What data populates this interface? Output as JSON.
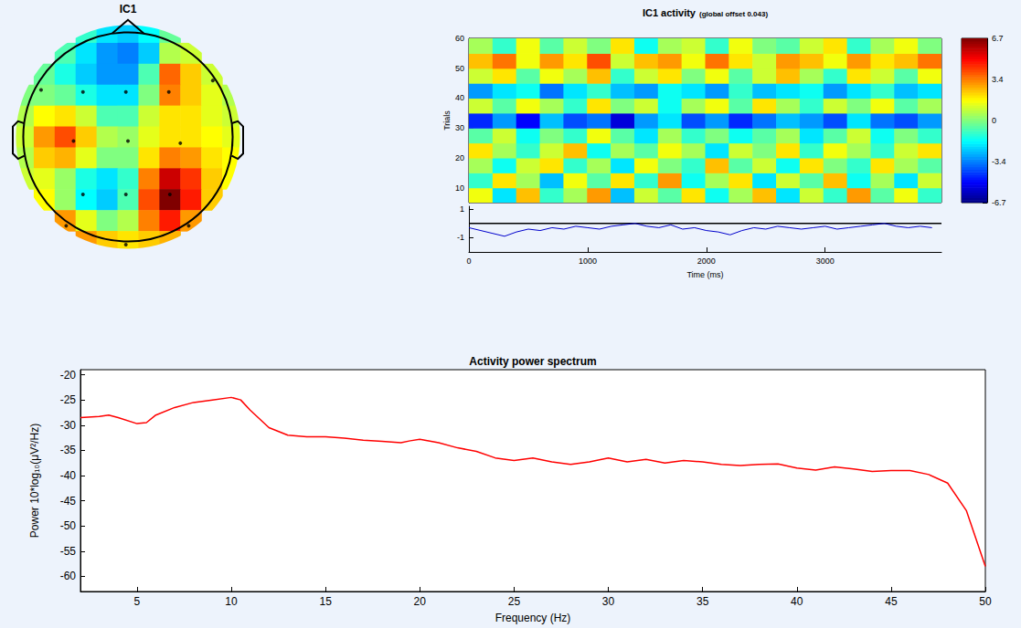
{
  "chart_data": [
    {
      "type": "topomap",
      "title": "IC1",
      "tick_labels": false,
      "xlim": [
        -1.1,
        1.1
      ],
      "ylim": [
        -1.1,
        1.1
      ],
      "clim": [
        -1,
        1
      ],
      "x": [
        -1.0,
        -0.8,
        -0.6,
        -0.4,
        -0.2,
        0.0,
        0.2,
        0.4,
        0.6,
        0.8,
        1.0
      ],
      "y": [
        1.0,
        0.8,
        0.6,
        0.4,
        0.2,
        0.0,
        -0.2,
        -0.4,
        -0.6,
        -0.8,
        -1.0
      ],
      "cells": [
        [
          null,
          null,
          null,
          -0.15,
          -0.3,
          -0.35,
          -0.25,
          -0.05,
          null,
          null,
          null
        ],
        [
          null,
          null,
          -0.1,
          -0.3,
          -0.45,
          -0.5,
          -0.35,
          0.1,
          0.15,
          null,
          null
        ],
        [
          null,
          -0.05,
          -0.2,
          -0.35,
          -0.45,
          -0.45,
          -0.1,
          0.55,
          0.35,
          0.15,
          null
        ],
        [
          0.0,
          0.0,
          -0.05,
          -0.2,
          -0.3,
          -0.3,
          0.0,
          0.5,
          0.35,
          0.2,
          0.1
        ],
        [
          0.1,
          0.25,
          0.3,
          0.15,
          -0.1,
          -0.1,
          0.15,
          0.3,
          0.3,
          0.2,
          0.15
        ],
        [
          0.15,
          0.45,
          0.6,
          0.35,
          0.1,
          0.05,
          0.2,
          0.3,
          0.3,
          0.25,
          0.2
        ],
        [
          0.1,
          0.35,
          0.4,
          0.2,
          0.0,
          0.0,
          0.3,
          0.5,
          0.45,
          0.3,
          0.25
        ],
        [
          0.15,
          0.2,
          0.05,
          -0.2,
          -0.3,
          -0.15,
          0.5,
          0.85,
          0.65,
          0.35,
          0.25
        ],
        [
          null,
          0.25,
          0.05,
          -0.25,
          -0.35,
          -0.1,
          0.6,
          1.0,
          0.7,
          0.35,
          null
        ],
        [
          null,
          null,
          0.45,
          0.2,
          0.0,
          0.1,
          0.5,
          0.7,
          0.45,
          null,
          null
        ],
        [
          null,
          null,
          null,
          0.45,
          0.35,
          0.3,
          0.35,
          0.4,
          null,
          null,
          null
        ]
      ],
      "electrodes": [
        [
          -0.43,
          0.43
        ],
        [
          -0.02,
          0.43
        ],
        [
          0.39,
          0.43
        ],
        [
          -0.52,
          -0.04
        ],
        [
          0.0,
          -0.04
        ],
        [
          0.5,
          -0.06
        ],
        [
          -0.43,
          -0.55
        ],
        [
          -0.02,
          -0.55
        ],
        [
          0.4,
          -0.55
        ],
        [
          -0.59,
          -0.85
        ],
        [
          -0.02,
          -1.03
        ],
        [
          0.58,
          -0.85
        ],
        [
          -0.83,
          0.45
        ],
        [
          0.81,
          0.54
        ]
      ]
    },
    {
      "type": "erpimage",
      "title": "IC1 activity",
      "subtitle": "(global offset 0.043)",
      "xlabel": "Time (ms)",
      "ylabel": "Trials",
      "xlim": [
        0,
        3980
      ],
      "ylim": [
        5,
        60
      ],
      "xticks": [
        0,
        1000,
        2000,
        3000
      ],
      "yticks": [
        10,
        20,
        30,
        40,
        50,
        60
      ],
      "clim": [
        -6.7,
        6.7
      ],
      "cticks": [
        6.7,
        {
          "value": 3.35,
          "label": "3.4"
        },
        0,
        {
          "value": -3.35,
          "label": "-3.4"
        },
        -6.7
      ],
      "cells": [
        [
          1.5,
          -2,
          2.5,
          -1,
          0.5,
          3,
          -2.5,
          1,
          -0.5,
          2,
          -1.5,
          0.5,
          2.5,
          -2,
          1,
          -1,
          3,
          -0.5,
          1.5,
          -1
        ],
        [
          -1,
          2,
          0.5,
          -2.5,
          1.5,
          -0.5,
          2,
          -1,
          3,
          -1.5,
          0.5,
          2,
          -2,
          1,
          -0.5,
          2.5,
          -1.5,
          0.5,
          -2,
          1
        ],
        [
          0.5,
          -1.5,
          1,
          2,
          -1,
          0.5,
          -2,
          1.5,
          0,
          -1,
          2.5,
          -0.5,
          1,
          -1.5,
          2,
          0,
          -1,
          2,
          0.5,
          -0.5
        ],
        [
          2,
          0.5,
          -1,
          1,
          2.5,
          -1.5,
          0.5,
          -0.5,
          1.5,
          0.5,
          -2,
          1,
          0,
          2,
          -1,
          1.5,
          0.5,
          -1,
          1,
          2
        ],
        [
          -0.5,
          1,
          -1.5,
          0,
          -1,
          1.5,
          -0.5,
          -2,
          0.5,
          -1,
          0,
          -1.5,
          -0.5,
          0.5,
          -2,
          -0.5,
          1,
          -1.5,
          0,
          -1
        ],
        [
          -4.5,
          -3,
          -5,
          -2.5,
          -4,
          -3.5,
          -5.5,
          -3,
          -2,
          -4,
          -3,
          -4.5,
          -3.5,
          -2.5,
          -3,
          -4,
          -2,
          -3.5,
          -4,
          -3
        ],
        [
          1,
          -0.5,
          1.5,
          0.5,
          -1,
          2,
          0,
          1,
          -1.5,
          0.5,
          1.5,
          -0.5,
          2,
          0.5,
          -1,
          1,
          0,
          1.5,
          -0.5,
          0.5
        ],
        [
          -3,
          -2,
          -1.5,
          -3.5,
          -2,
          -1,
          -2.5,
          -3,
          -1.5,
          -2,
          -3,
          -1,
          -2.5,
          -2,
          -1.5,
          -3,
          -2,
          -1,
          -2.5,
          -2
        ],
        [
          1,
          2,
          -0.5,
          1.5,
          0.5,
          2.5,
          -1,
          1,
          2,
          0,
          1.5,
          -0.5,
          1,
          2.5,
          0.5,
          -1,
          2,
          1,
          -0.5,
          1.5
        ],
        [
          2.5,
          3.5,
          1.5,
          3,
          2,
          4,
          1,
          2.5,
          3,
          1.5,
          3.5,
          2,
          1,
          3,
          2.5,
          1.5,
          3,
          2,
          2.5,
          3.5
        ],
        [
          0.5,
          -1,
          1.5,
          -0.5,
          1,
          0,
          2,
          -1.5,
          0.5,
          1,
          -1,
          1.5,
          0,
          -0.5,
          1,
          2,
          -1,
          0.5,
          1.5,
          0
        ]
      ],
      "erp": {
        "type": "line",
        "color": "#0000cc",
        "ylim": [
          -2,
          1.2
        ],
        "yticks": [
          -1,
          1
        ],
        "baseline": 0,
        "x": [
          0,
          100,
          200,
          300,
          400,
          500,
          600,
          700,
          800,
          900,
          1000,
          1100,
          1200,
          1300,
          1400,
          1500,
          1600,
          1700,
          1800,
          1900,
          2000,
          2100,
          2200,
          2300,
          2400,
          2500,
          2600,
          2700,
          2800,
          2900,
          3000,
          3100,
          3200,
          3300,
          3400,
          3500,
          3600,
          3700,
          3800,
          3900
        ],
        "values": [
          -0.3,
          -0.5,
          -0.7,
          -0.9,
          -0.6,
          -0.4,
          -0.5,
          -0.3,
          -0.4,
          -0.2,
          -0.3,
          -0.4,
          -0.2,
          -0.1,
          0.0,
          -0.2,
          -0.3,
          -0.1,
          -0.4,
          -0.3,
          -0.5,
          -0.6,
          -0.8,
          -0.5,
          -0.3,
          -0.4,
          -0.2,
          -0.3,
          -0.4,
          -0.3,
          -0.2,
          -0.4,
          -0.3,
          -0.2,
          -0.1,
          0.0,
          -0.2,
          -0.3,
          -0.2,
          -0.3
        ]
      }
    },
    {
      "type": "line",
      "title": "Activity power spectrum",
      "xlabel": "Frequency (Hz)",
      "ylabel": "Power 10*log₁₀(μV²/Hz)",
      "color": "#ff0000",
      "grid": false,
      "xlim": [
        2,
        50
      ],
      "ylim": [
        -63,
        -19
      ],
      "xticks": [
        5,
        10,
        15,
        20,
        25,
        30,
        35,
        40,
        45,
        50
      ],
      "yticks": [
        -20,
        -25,
        -30,
        -35,
        -40,
        -45,
        -50,
        -55,
        -60
      ],
      "x": [
        2,
        3,
        3.5,
        4,
        5,
        5.5,
        6,
        7,
        8,
        9,
        10,
        10.5,
        11,
        12,
        13,
        14,
        15,
        16,
        17,
        18,
        19,
        19.5,
        20,
        21,
        22,
        23,
        24,
        25,
        26,
        27,
        28,
        29,
        30,
        31,
        32,
        33,
        34,
        35,
        36,
        37,
        38,
        39,
        40,
        41,
        42,
        43,
        44,
        45,
        46,
        47,
        48,
        49,
        50
      ],
      "values": [
        -28.5,
        -28.3,
        -28,
        -28.5,
        -29.7,
        -29.5,
        -28,
        -26.5,
        -25.5,
        -25,
        -24.5,
        -25,
        -27,
        -30.5,
        -32,
        -32.3,
        -32.3,
        -32.6,
        -33,
        -33.2,
        -33.5,
        -33.1,
        -32.8,
        -33.5,
        -34.5,
        -35.2,
        -36.5,
        -37,
        -36.5,
        -37.3,
        -37.8,
        -37.3,
        -36.5,
        -37.3,
        -36.8,
        -37.5,
        -37,
        -37.3,
        -37.8,
        -38,
        -37.8,
        -37.7,
        -38.5,
        -38.9,
        -38.3,
        -38.7,
        -39.2,
        -39,
        -39,
        -39.8,
        -41.5,
        -47,
        -58
      ]
    }
  ]
}
